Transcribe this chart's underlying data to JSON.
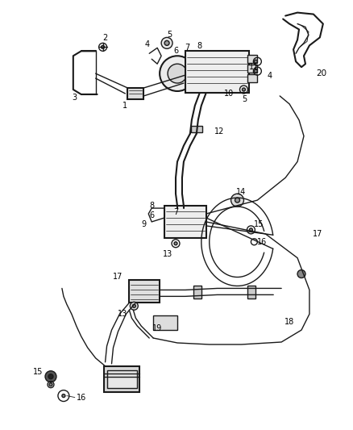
{
  "bg_color": "#ffffff",
  "line_color": "#1a1a1a",
  "label_color": "#000000",
  "fig_width": 4.38,
  "fig_height": 5.33,
  "dpi": 100
}
